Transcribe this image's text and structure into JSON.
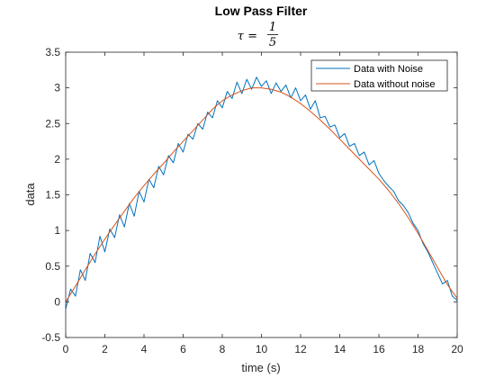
{
  "chart_data": {
    "type": "line",
    "title": "Low Pass Filter",
    "subtitle_tex": "τ = 1/5",
    "subtitle_lhs": "τ =",
    "subtitle_num": "1",
    "subtitle_den": "5",
    "xlabel": "time (s)",
    "ylabel": "data",
    "xlim": [
      0,
      20
    ],
    "ylim": [
      -0.5,
      3.5
    ],
    "xticks": [
      0,
      2,
      4,
      6,
      8,
      10,
      12,
      14,
      16,
      18,
      20
    ],
    "yticks": [
      -0.5,
      0,
      0.5,
      1,
      1.5,
      2,
      2.5,
      3,
      3.5
    ],
    "xtick_labels": [
      "0",
      "2",
      "4",
      "6",
      "8",
      "10",
      "12",
      "14",
      "16",
      "18",
      "20"
    ],
    "ytick_labels": [
      "-0.5",
      "0",
      "0.5",
      "1",
      "1.5",
      "2",
      "2.5",
      "3",
      "3.5"
    ],
    "grid": false,
    "legend_position": "top-right",
    "series": [
      {
        "name": "Data with Noise",
        "color": "#0072BD",
        "x": [
          0,
          0.25,
          0.5,
          0.75,
          1,
          1.25,
          1.5,
          1.75,
          2,
          2.25,
          2.5,
          2.75,
          3,
          3.25,
          3.5,
          3.75,
          4,
          4.25,
          4.5,
          4.75,
          5,
          5.25,
          5.5,
          5.75,
          6,
          6.25,
          6.5,
          6.75,
          7,
          7.25,
          7.5,
          7.75,
          8,
          8.25,
          8.5,
          8.75,
          9,
          9.25,
          9.5,
          9.75,
          10,
          10.25,
          10.5,
          10.75,
          11,
          11.25,
          11.5,
          11.75,
          12,
          12.25,
          12.5,
          12.75,
          13,
          13.25,
          13.5,
          13.75,
          14,
          14.25,
          14.5,
          14.75,
          15,
          15.25,
          15.5,
          15.75,
          16,
          16.25,
          16.5,
          16.75,
          17,
          17.25,
          17.5,
          17.75,
          18,
          18.25,
          18.5,
          18.75,
          19,
          19.25,
          19.5,
          19.75,
          20
        ],
        "y": [
          -0.1,
          0.18,
          0.08,
          0.45,
          0.3,
          0.68,
          0.55,
          0.92,
          0.7,
          1.02,
          0.9,
          1.22,
          1.05,
          1.38,
          1.2,
          1.55,
          1.4,
          1.72,
          1.6,
          1.9,
          1.78,
          2.05,
          1.95,
          2.22,
          2.1,
          2.35,
          2.28,
          2.5,
          2.42,
          2.66,
          2.58,
          2.82,
          2.72,
          2.95,
          2.85,
          3.08,
          2.92,
          3.12,
          2.98,
          3.15,
          3.02,
          3.1,
          2.92,
          3.07,
          2.95,
          3.04,
          2.86,
          3.0,
          2.82,
          2.9,
          2.7,
          2.82,
          2.58,
          2.6,
          2.45,
          2.48,
          2.3,
          2.36,
          2.18,
          2.22,
          2.05,
          2.1,
          1.92,
          1.98,
          1.8,
          1.7,
          1.62,
          1.55,
          1.42,
          1.35,
          1.25,
          1.1,
          1.0,
          0.82,
          0.7,
          0.55,
          0.4,
          0.25,
          0.3,
          0.08,
          0.02
        ]
      },
      {
        "name": "Data without noise",
        "color": "#D95319",
        "x": [
          0,
          0.5,
          1,
          1.5,
          2,
          2.5,
          3,
          3.5,
          4,
          4.5,
          5,
          5.5,
          6,
          6.5,
          7,
          7.5,
          8,
          8.5,
          9,
          9.5,
          10,
          10.5,
          11,
          11.5,
          12,
          12.5,
          13,
          13.5,
          14,
          14.5,
          15,
          15.5,
          16,
          16.5,
          17,
          17.5,
          18,
          18.5,
          19,
          19.5,
          20
        ],
        "y": [
          0,
          0.22,
          0.45,
          0.67,
          0.88,
          1.08,
          1.27,
          1.46,
          1.63,
          1.79,
          1.94,
          2.1,
          2.25,
          2.4,
          2.55,
          2.7,
          2.82,
          2.9,
          2.96,
          3.0,
          3.0,
          2.98,
          2.94,
          2.87,
          2.78,
          2.67,
          2.55,
          2.42,
          2.28,
          2.14,
          2.0,
          1.86,
          1.72,
          1.56,
          1.38,
          1.18,
          0.96,
          0.72,
          0.48,
          0.24,
          0.05
        ]
      }
    ]
  }
}
